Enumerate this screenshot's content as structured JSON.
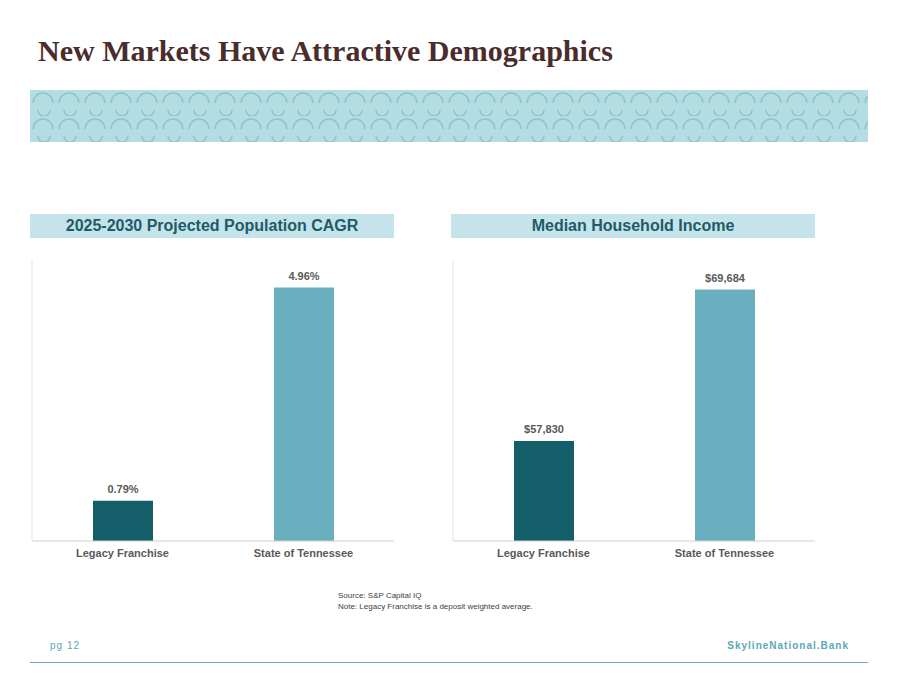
{
  "title": "New Markets Have Attractive Demographics",
  "chart_data": [
    {
      "type": "bar",
      "title": "2025-2030 Projected Population CAGR",
      "categories": [
        "Legacy Franchise",
        "State of Tennessee"
      ],
      "values": [
        0.79,
        4.96
      ],
      "value_labels": [
        "0.79%",
        "4.96%"
      ],
      "colors": [
        "#135e68",
        "#6aafbf"
      ],
      "ylim": [
        0,
        5.5
      ],
      "data_labels": true,
      "tick_labels": "x",
      "grid": false
    },
    {
      "type": "bar",
      "title": "Median Household Income",
      "categories": [
        "Legacy Franchise",
        "State of Tennessee"
      ],
      "values": [
        57830,
        69684
      ],
      "value_labels": [
        "$57,830",
        "$69,684"
      ],
      "colors": [
        "#135e68",
        "#6aafbf"
      ],
      "ylim": [
        50000,
        72000
      ],
      "data_labels": true,
      "tick_labels": "x",
      "grid": false
    }
  ],
  "source": "Source: S&P Capital IQ",
  "note": "Note: Legacy Franchise is a deposit weighted average.",
  "page": "pg 12",
  "website": "SkylineNational.Bank"
}
